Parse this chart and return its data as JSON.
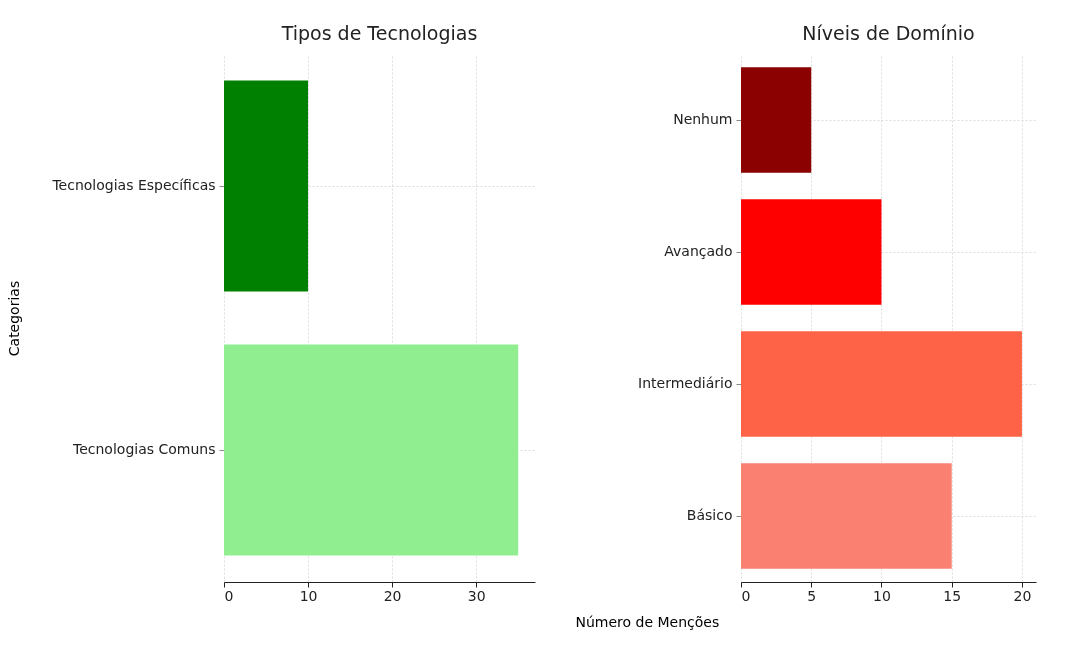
{
  "chart_data": [
    {
      "type": "bar",
      "orientation": "horizontal",
      "title": "Tipos de Tecnologias",
      "ylabel": "Categorias",
      "categories": [
        "Tecnologias Específicas",
        "Tecnologias Comuns"
      ],
      "series": [
        {
          "values": [
            10,
            35
          ],
          "colors": [
            "#008000",
            "#90ee90"
          ]
        }
      ],
      "xlim": [
        0,
        37
      ],
      "xticks": [
        0,
        10,
        20,
        30
      ],
      "grid": true
    },
    {
      "type": "bar",
      "orientation": "horizontal",
      "title": "Níveis de Domínio",
      "xlabel": "Número de Menções",
      "categories": [
        "Nenhum",
        "Avançado",
        "Intermediário",
        "Básico"
      ],
      "series": [
        {
          "values": [
            5,
            10,
            20,
            15
          ],
          "colors": [
            "#8b0000",
            "#ff0000",
            "#ff6347",
            "#fa8072"
          ]
        }
      ],
      "xlim": [
        0,
        21
      ],
      "xticks": [
        0,
        5,
        10,
        15,
        20
      ],
      "grid": true
    }
  ]
}
